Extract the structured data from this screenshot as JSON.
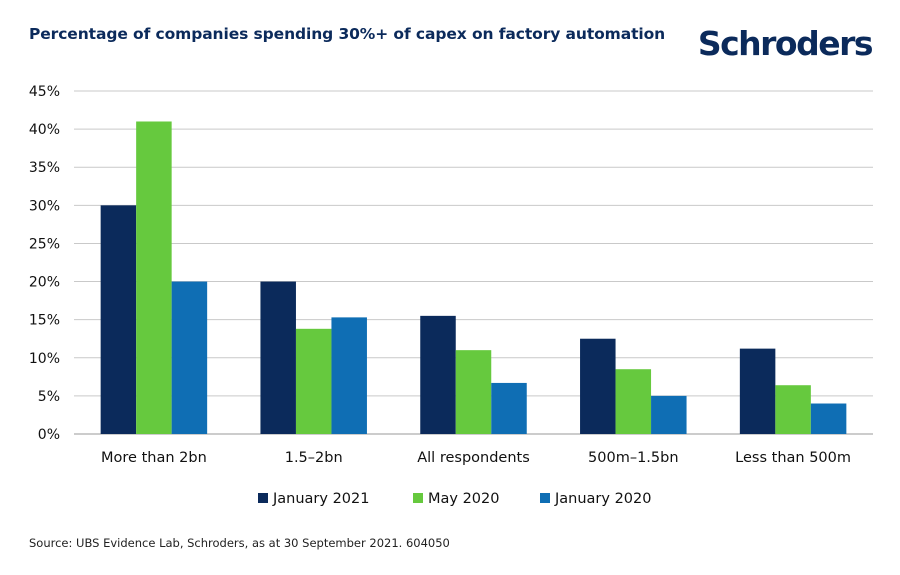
{
  "title": "Percentage of companies spending 30%+ of capex on factory automation",
  "brand": "Schroders",
  "source": "Source: UBS Evidence Lab, Schroders, as at 30 September 2021. 604050",
  "colors": {
    "January 2021": "#0b2a5b",
    "May 2020": "#66c93e",
    "January 2020": "#0f6eb4",
    "grid": "#c9c9c9",
    "title": "#0b2a5b"
  },
  "chart_data": {
    "type": "bar",
    "title": "Percentage of companies spending 30%+ of capex on factory automation",
    "xlabel": "",
    "ylabel": "",
    "categories": [
      "More than 2bn",
      "1.5–2bn",
      "All respondents",
      "500m–1.5bn",
      "Less than 500m"
    ],
    "series": [
      {
        "name": "January 2021",
        "values": [
          30,
          20,
          15.5,
          12.5,
          11.2
        ]
      },
      {
        "name": "May 2020",
        "values": [
          41,
          13.8,
          11,
          8.5,
          6.4
        ]
      },
      {
        "name": "January 2020",
        "values": [
          20,
          15.3,
          6.7,
          5,
          4
        ]
      }
    ],
    "ylim": [
      0,
      45
    ],
    "yticks": [
      0,
      5,
      10,
      15,
      20,
      25,
      30,
      35,
      40,
      45
    ],
    "ytick_labels": [
      "0%",
      "5%",
      "10%",
      "15%",
      "20%",
      "25%",
      "30%",
      "35%",
      "40%",
      "45%"
    ],
    "grid": true,
    "legend_position": "bottom-center"
  }
}
